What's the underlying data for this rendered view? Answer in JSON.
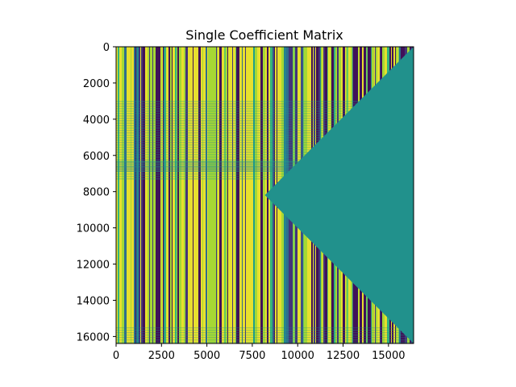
{
  "chart_data": {
    "type": "heatmap",
    "title": "Single Coefficient Matrix",
    "xlabel": "",
    "ylabel": "",
    "xlim": [
      0,
      16384
    ],
    "ylim": [
      16384,
      0
    ],
    "xticks": [
      0,
      2500,
      5000,
      7500,
      10000,
      12500,
      15000
    ],
    "xtick_labels": [
      "0",
      "2500",
      "5000",
      "7500",
      "10000",
      "12500",
      "15000"
    ],
    "yticks": [
      0,
      2000,
      4000,
      6000,
      8000,
      10000,
      12000,
      14000,
      16000
    ],
    "ytick_labels": [
      "0",
      "2000",
      "4000",
      "6000",
      "8000",
      "10000",
      "12000",
      "14000",
      "16000"
    ],
    "colormap": "viridis",
    "grid": false,
    "regions": [
      {
        "name": "uniform triangular region",
        "value_color": "#21918c",
        "apex": [
          8192,
          8192
        ],
        "top_right": [
          16384,
          0
        ],
        "bottom_right": [
          16384,
          16384
        ]
      }
    ]
  }
}
